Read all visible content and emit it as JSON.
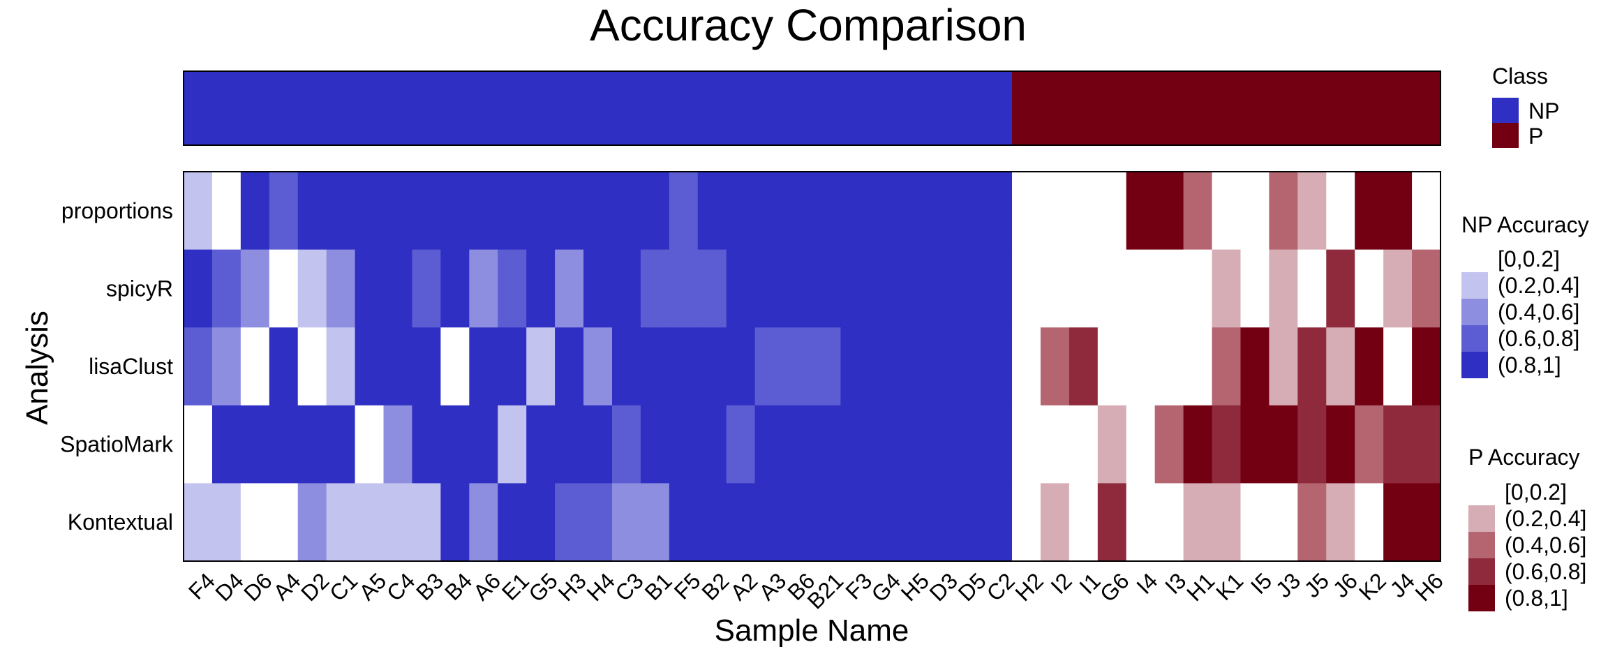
{
  "chart_data": {
    "type": "heatmap",
    "title": "Accuracy Comparison",
    "xlabel": "Sample Name",
    "ylabel": "Analysis",
    "rows": [
      "proportions",
      "spicyR",
      "lisaClust",
      "SpatioMark",
      "Kontextual"
    ],
    "columns": [
      "F4",
      "D4",
      "D6",
      "A4",
      "D2",
      "C1",
      "A5",
      "C4",
      "B3",
      "B4",
      "A6",
      "E1",
      "G5",
      "H3",
      "H4",
      "C3",
      "B1",
      "F5",
      "B2",
      "A2",
      "A3",
      "B6",
      "B21",
      "F3",
      "G4",
      "H5",
      "D3",
      "D5",
      "C2",
      "H2",
      "I2",
      "I1",
      "G6",
      "I4",
      "I3",
      "H1",
      "K1",
      "I5",
      "J3",
      "J5",
      "J6",
      "K2",
      "J4",
      "H6"
    ],
    "class": [
      "NP",
      "NP",
      "NP",
      "NP",
      "NP",
      "NP",
      "NP",
      "NP",
      "NP",
      "NP",
      "NP",
      "NP",
      "NP",
      "NP",
      "NP",
      "NP",
      "NP",
      "NP",
      "NP",
      "NP",
      "NP",
      "NP",
      "NP",
      "NP",
      "NP",
      "NP",
      "NP",
      "NP",
      "NP",
      "P",
      "P",
      "P",
      "P",
      "P",
      "P",
      "P",
      "P",
      "P",
      "P",
      "P",
      "P",
      "P",
      "P",
      "P"
    ],
    "accuracy_bins": [
      [
        1,
        0,
        4,
        3,
        4,
        4,
        4,
        4,
        4,
        4,
        4,
        4,
        4,
        4,
        4,
        4,
        4,
        3,
        4,
        4,
        4,
        4,
        4,
        4,
        4,
        4,
        4,
        4,
        4,
        0,
        0,
        0,
        0,
        4,
        4,
        2,
        0,
        0,
        2,
        1,
        0,
        4,
        4,
        0
      ],
      [
        4,
        3,
        2,
        0,
        1,
        2,
        4,
        4,
        3,
        4,
        2,
        3,
        4,
        2,
        4,
        4,
        3,
        3,
        3,
        4,
        4,
        4,
        4,
        4,
        4,
        4,
        4,
        4,
        4,
        0,
        0,
        0,
        0,
        0,
        0,
        0,
        1,
        0,
        1,
        0,
        3,
        0,
        1,
        2
      ],
      [
        3,
        2,
        0,
        4,
        0,
        1,
        4,
        4,
        4,
        0,
        4,
        4,
        1,
        4,
        2,
        4,
        4,
        4,
        4,
        4,
        3,
        3,
        3,
        4,
        4,
        4,
        4,
        4,
        4,
        0,
        2,
        3,
        0,
        0,
        0,
        0,
        2,
        4,
        1,
        3,
        1,
        4,
        0,
        4
      ],
      [
        0,
        4,
        4,
        4,
        4,
        4,
        0,
        2,
        4,
        4,
        4,
        1,
        4,
        4,
        4,
        3,
        4,
        4,
        4,
        3,
        4,
        4,
        4,
        4,
        4,
        4,
        4,
        4,
        4,
        0,
        0,
        0,
        1,
        0,
        2,
        4,
        3,
        4,
        4,
        3,
        4,
        2,
        3,
        3
      ],
      [
        1,
        1,
        0,
        0,
        2,
        1,
        1,
        1,
        1,
        4,
        2,
        4,
        4,
        3,
        3,
        2,
        2,
        4,
        4,
        4,
        4,
        4,
        4,
        4,
        4,
        4,
        4,
        4,
        4,
        0,
        1,
        0,
        3,
        0,
        0,
        1,
        1,
        0,
        0,
        2,
        1,
        0,
        4,
        4
      ]
    ],
    "legends": {
      "class": {
        "title": "Class",
        "entries": [
          "NP",
          "P"
        ]
      },
      "np_accuracy": {
        "title": "NP Accuracy",
        "entries": [
          "[0,0.2]",
          "(0.2,0.4]",
          "(0.4,0.6]",
          "(0.6,0.8]",
          "(0.8,1]"
        ]
      },
      "p_accuracy": {
        "title": "P Accuracy",
        "entries": [
          "[0,0.2]",
          "(0.2,0.4]",
          "(0.4,0.6]",
          "(0.6,0.8]",
          "(0.8,1]"
        ]
      }
    },
    "colors": {
      "np_class": "#2f2fc4",
      "p_class": "#720012",
      "np_scale": [
        "#ffffff",
        "#c3c3ef",
        "#8e8ee0",
        "#5c5cd3",
        "#2f2fc4"
      ],
      "p_scale": [
        "#ffffff",
        "#d7adb5",
        "#b46570",
        "#8e2a3b",
        "#720012"
      ]
    }
  }
}
